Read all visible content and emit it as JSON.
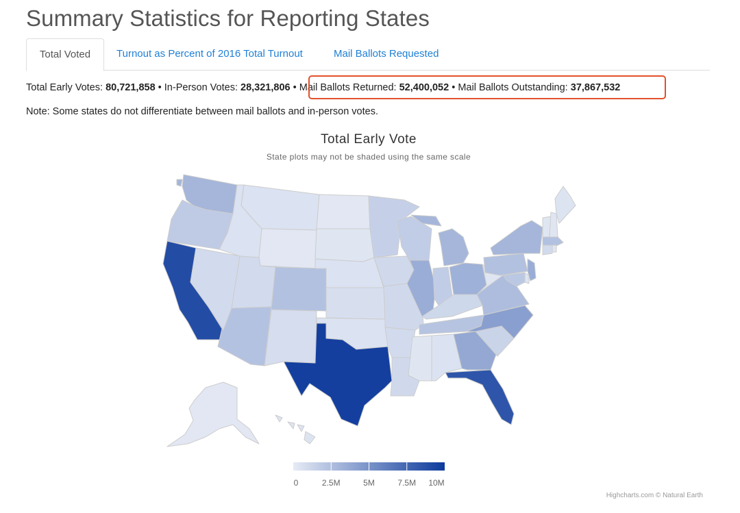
{
  "page": {
    "title": "Summary Statistics for Reporting States"
  },
  "tabs": [
    {
      "label": "Total Voted",
      "active": true
    },
    {
      "label": "Turnout as Percent of 2016 Total Turnout",
      "active": false
    },
    {
      "label": "Mail Ballots Requested",
      "active": false
    }
  ],
  "stats": {
    "total_early_label": "Total Early Votes: ",
    "total_early_value": "80,721,858",
    "sep1": " • ",
    "in_person_label": "In-Person Votes: ",
    "in_person_value": "28,321,806",
    "sep2": " • ",
    "mail_returned_label": "Mail Ballots Returned: ",
    "mail_returned_value": "52,400,052",
    "sep3": " • ",
    "mail_outstanding_label": "Mail Ballots Outstanding: ",
    "mail_outstanding_value": "37,867,532"
  },
  "note": "Note: Some states do not differentiate between mail ballots and in-person votes.",
  "colors": {
    "accent_link": "#1f7fd6",
    "highlight": "#e2502b",
    "scale_min": "#e6ebf5",
    "scale_max": "#0d3a9c"
  },
  "chart_data": {
    "type": "choropleth",
    "title": "Total Early Vote",
    "subtitle": "State plots may not be shaded using the same scale",
    "colorAxis": {
      "min": 0,
      "max": 10000000,
      "ticks": [
        "0",
        "2.5M",
        "5M",
        "7.5M",
        "10M"
      ]
    },
    "credits": "Highcharts.com © Natural Earth",
    "states": [
      {
        "code": "WA",
        "value": 3000000
      },
      {
        "code": "OR",
        "value": 1800000
      },
      {
        "code": "CA",
        "value": 9000000
      },
      {
        "code": "NV",
        "value": 900000
      },
      {
        "code": "ID",
        "value": 500000
      },
      {
        "code": "MT",
        "value": 500000
      },
      {
        "code": "WY",
        "value": 200000
      },
      {
        "code": "UT",
        "value": 900000
      },
      {
        "code": "AZ",
        "value": 2300000
      },
      {
        "code": "CO",
        "value": 2400000
      },
      {
        "code": "NM",
        "value": 800000
      },
      {
        "code": "ND",
        "value": 200000
      },
      {
        "code": "SD",
        "value": 300000
      },
      {
        "code": "NE",
        "value": 500000
      },
      {
        "code": "KS",
        "value": 700000
      },
      {
        "code": "OK",
        "value": 500000
      },
      {
        "code": "TX",
        "value": 9700000
      },
      {
        "code": "MN",
        "value": 1500000
      },
      {
        "code": "IA",
        "value": 1000000
      },
      {
        "code": "MO",
        "value": 1000000
      },
      {
        "code": "AR",
        "value": 900000
      },
      {
        "code": "LA",
        "value": 1000000
      },
      {
        "code": "WI",
        "value": 1700000
      },
      {
        "code": "IL",
        "value": 3500000
      },
      {
        "code": "MI",
        "value": 3000000
      },
      {
        "code": "IN",
        "value": 1700000
      },
      {
        "code": "OH",
        "value": 3300000
      },
      {
        "code": "KY",
        "value": 1100000
      },
      {
        "code": "TN",
        "value": 2200000
      },
      {
        "code": "MS",
        "value": 300000
      },
      {
        "code": "AL",
        "value": 500000
      },
      {
        "code": "GA",
        "value": 3800000
      },
      {
        "code": "FL",
        "value": 8500000
      },
      {
        "code": "SC",
        "value": 1300000
      },
      {
        "code": "NC",
        "value": 4300000
      },
      {
        "code": "VA",
        "value": 2600000
      },
      {
        "code": "WV",
        "value": 300000
      },
      {
        "code": "PA",
        "value": 2400000
      },
      {
        "code": "NY",
        "value": 3000000
      },
      {
        "code": "NJ",
        "value": 3500000
      },
      {
        "code": "DE",
        "value": 400000
      },
      {
        "code": "MD",
        "value": 2000000
      },
      {
        "code": "VT",
        "value": 300000
      },
      {
        "code": "NH",
        "value": 300000
      },
      {
        "code": "ME",
        "value": 400000
      },
      {
        "code": "MA",
        "value": 2400000
      },
      {
        "code": "CT",
        "value": 900000
      },
      {
        "code": "RI",
        "value": 300000
      },
      {
        "code": "AK",
        "value": 200000
      },
      {
        "code": "HI",
        "value": 400000
      }
    ]
  }
}
